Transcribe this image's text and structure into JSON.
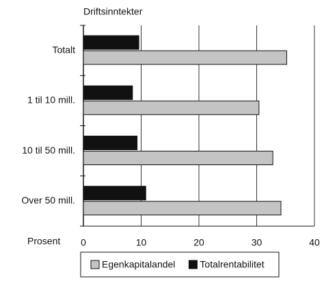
{
  "chart_data": {
    "type": "barh",
    "title": "Driftsinntekter",
    "xlabel": "Prosent",
    "categories": [
      "Totalt",
      "1 til 10 mill.",
      "10 til 50 mill.",
      "Over 50 mill."
    ],
    "series": [
      {
        "name": "Egenkapitalandel",
        "color": "#c4c4c4",
        "values": [
          35.2,
          30.4,
          32.8,
          34.2
        ]
      },
      {
        "name": "Totalrentabilitet",
        "color": "#111111",
        "values": [
          9.6,
          8.5,
          9.3,
          10.8
        ]
      }
    ],
    "xlim": [
      0,
      40
    ],
    "xticks": [
      0,
      10,
      20,
      30,
      40
    ],
    "grid": true,
    "legend": "bottom"
  }
}
